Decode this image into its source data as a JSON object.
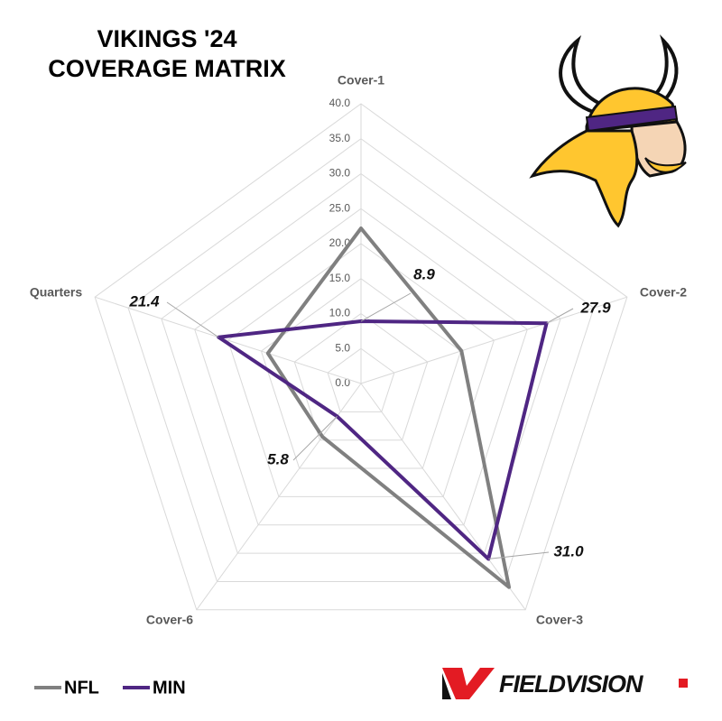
{
  "chart_data": {
    "type": "radar",
    "title": [
      "VIKINGS '24",
      "COVERAGE MATRIX"
    ],
    "categories": [
      "Cover-1",
      "Cover-2",
      "Cover-3",
      "Cover-6",
      "Quarters"
    ],
    "rlim": [
      0,
      40
    ],
    "rticks": [
      {
        "value": 0,
        "label": "0.0"
      },
      {
        "value": 5,
        "label": "5.0"
      },
      {
        "value": 10,
        "label": "10.0"
      },
      {
        "value": 15,
        "label": "15.0"
      },
      {
        "value": 20,
        "label": "20.0"
      },
      {
        "value": 25,
        "label": "25.0"
      },
      {
        "value": 30,
        "label": "30.0"
      },
      {
        "value": 35,
        "label": "35.0"
      },
      {
        "value": 40,
        "label": "40.0"
      }
    ],
    "grid": true,
    "legend": "bottom-left",
    "series": [
      {
        "name": "NFL",
        "color": "#808080",
        "values": [
          22.2,
          15.1,
          36.0,
          9.4,
          14.0
        ]
      },
      {
        "name": "MIN",
        "color": "#4f2683",
        "values": [
          8.9,
          27.9,
          31.0,
          5.8,
          21.4
        ],
        "value_labels": [
          "8.9",
          "27.9",
          "31.0",
          "5.8",
          "21.4"
        ]
      }
    ]
  },
  "brand": "FIELDVISION"
}
